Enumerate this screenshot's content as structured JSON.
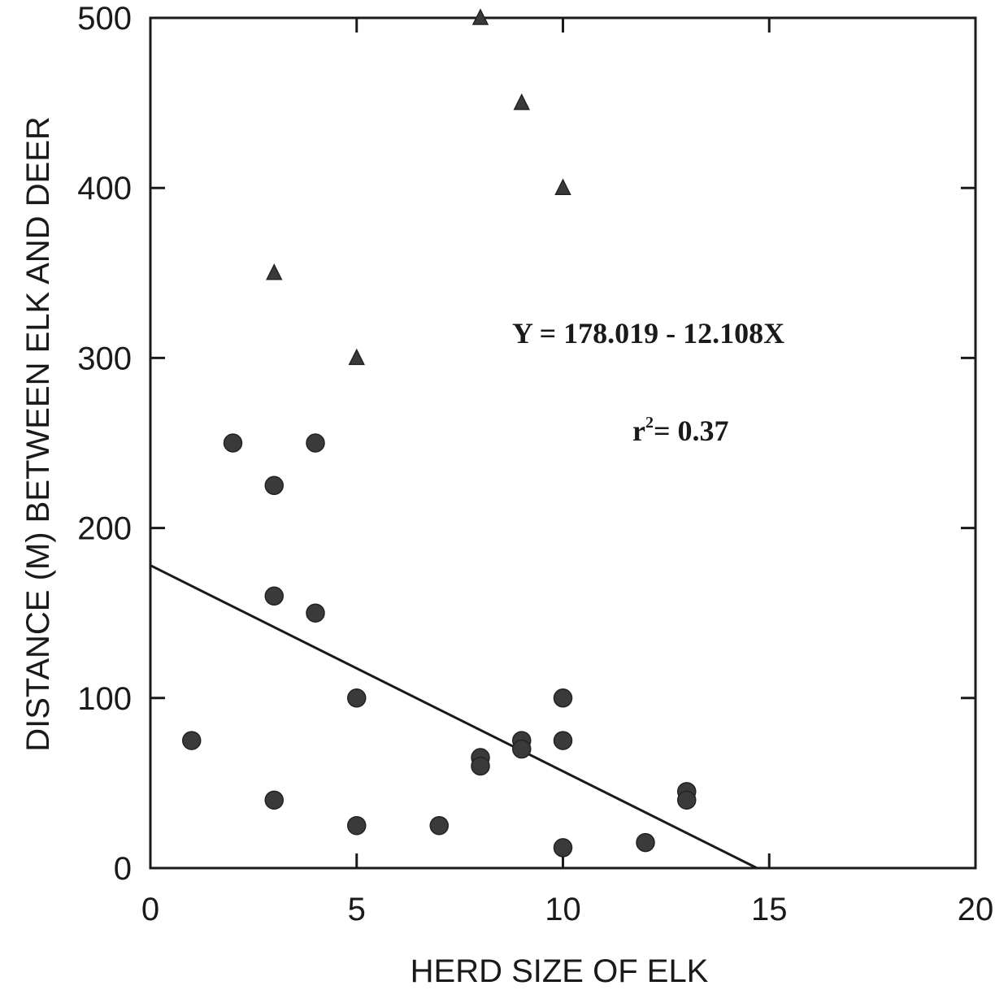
{
  "chart_data": {
    "type": "scatter",
    "xlabel": "HERD SIZE OF ELK",
    "ylabel": "DISTANCE (M) BETWEEN ELK AND DEER",
    "xlim": [
      0,
      20
    ],
    "ylim": [
      0,
      500
    ],
    "x_ticks": [
      "0",
      "5",
      "10",
      "15",
      "20"
    ],
    "y_ticks": [
      "0",
      "100",
      "200",
      "300",
      "400",
      "500"
    ],
    "grid": false,
    "legend": "none",
    "annotation_equation": "Y = 178.019 - 12.108X",
    "annotation_r2_prefix": "r",
    "annotation_r2_exponent": "2",
    "annotation_r2_value": "= 0.37",
    "regression": {
      "intercept": 178.019,
      "slope": -12.108
    },
    "series": [
      {
        "marker": "circle",
        "color": "#3a3a3a",
        "points": [
          {
            "x": 1,
            "y": 75
          },
          {
            "x": 2,
            "y": 250
          },
          {
            "x": 3,
            "y": 225
          },
          {
            "x": 3,
            "y": 160
          },
          {
            "x": 3,
            "y": 40
          },
          {
            "x": 4,
            "y": 250
          },
          {
            "x": 4,
            "y": 150
          },
          {
            "x": 5,
            "y": 100
          },
          {
            "x": 5,
            "y": 25
          },
          {
            "x": 7,
            "y": 25
          },
          {
            "x": 8,
            "y": 65
          },
          {
            "x": 8,
            "y": 60
          },
          {
            "x": 9,
            "y": 75
          },
          {
            "x": 9,
            "y": 70
          },
          {
            "x": 10,
            "y": 100
          },
          {
            "x": 10,
            "y": 75
          },
          {
            "x": 10,
            "y": 12
          },
          {
            "x": 12,
            "y": 15
          },
          {
            "x": 13,
            "y": 45
          },
          {
            "x": 13,
            "y": 40
          }
        ]
      },
      {
        "marker": "triangle",
        "color": "#3a3a3a",
        "points": [
          {
            "x": 3,
            "y": 350
          },
          {
            "x": 5,
            "y": 300
          },
          {
            "x": 8,
            "y": 500
          },
          {
            "x": 9,
            "y": 450
          },
          {
            "x": 10,
            "y": 400
          }
        ]
      }
    ]
  }
}
